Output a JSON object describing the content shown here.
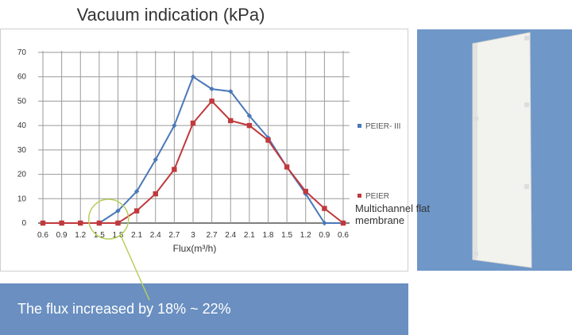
{
  "chart_data": {
    "type": "line",
    "title": "Vacuum indication (kPa)",
    "xlabel": "Flux(m³/h)",
    "ylabel": "",
    "ylim": [
      0,
      70
    ],
    "y_ticks": [
      "0",
      "10",
      "20",
      "30",
      "40",
      "50",
      "60",
      "70"
    ],
    "categories": [
      "0.6",
      "0.9",
      "1.2",
      "1.5",
      "1.8",
      "2.1",
      "2.4",
      "2.7",
      "3",
      "2.7",
      "2.4",
      "2.1",
      "1.8",
      "1.5",
      "1.2",
      "0.9",
      "0.6"
    ],
    "grid": true,
    "legend_position": "right",
    "series": [
      {
        "name": "PEIER- III",
        "color": "#4a78b8",
        "marker": "diamond",
        "values": [
          0,
          0,
          0,
          0,
          5,
          13,
          26,
          40,
          60,
          55,
          54,
          44,
          35,
          23,
          12,
          0,
          0
        ]
      },
      {
        "name": "PEIER",
        "name_line2": "Multichannel flat",
        "name_line3": "membrane",
        "color": "#c0393c",
        "marker": "square",
        "values": [
          0,
          0,
          0,
          0,
          0,
          5,
          12,
          22,
          41,
          50,
          42,
          40,
          34,
          23,
          13,
          6,
          0
        ]
      }
    ]
  },
  "banner": {
    "text": "The flux increased by 18% ~ 22%",
    "color": "#6a8fc0"
  },
  "photo": {
    "subject": "flat membrane panel",
    "background": "#6f97c8"
  },
  "annotation": {
    "color": "#b6cf5a"
  }
}
